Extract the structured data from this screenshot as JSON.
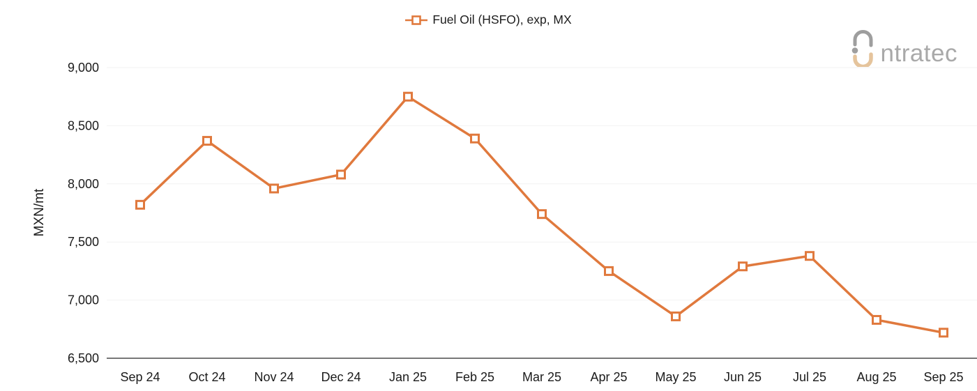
{
  "legend": {
    "label": "Fuel Oil (HSFO), exp, MX"
  },
  "logo": {
    "brand": "intratec",
    "text_after_mark": "ntratec"
  },
  "colors": {
    "series": "#E0793D",
    "marker_fill": "#FFFFFF",
    "grid": "#F2F2F2",
    "axis_line": "#4A4A4A",
    "tick_text": "#1B1B1B",
    "logo_gray": "#9E9E9E",
    "logo_text_gray": "#A9A9A9",
    "logo_tan": "#E5C49C"
  },
  "chart_data": {
    "type": "line",
    "title": "",
    "xlabel": "",
    "ylabel": "MXN/mt",
    "categories": [
      "Sep 24",
      "Oct 24",
      "Nov 24",
      "Dec 24",
      "Jan 25",
      "Feb 25",
      "Mar 25",
      "Apr 25",
      "May 25",
      "Jun 25",
      "Jul 25",
      "Aug 25",
      "Sep 25"
    ],
    "series": [
      {
        "name": "Fuel Oil (HSFO), exp, MX",
        "values": [
          7820,
          8370,
          7960,
          8080,
          8750,
          8390,
          7740,
          7250,
          6860,
          7290,
          7380,
          6830,
          6720
        ]
      }
    ],
    "ylim": [
      6500,
      9000
    ],
    "ytick_interval": 500,
    "ytick_labels": [
      "6,500",
      "7,000",
      "7,500",
      "8,000",
      "8,500",
      "9,000"
    ],
    "grid": true,
    "legend_position": "top-center",
    "marker": "square-open"
  }
}
